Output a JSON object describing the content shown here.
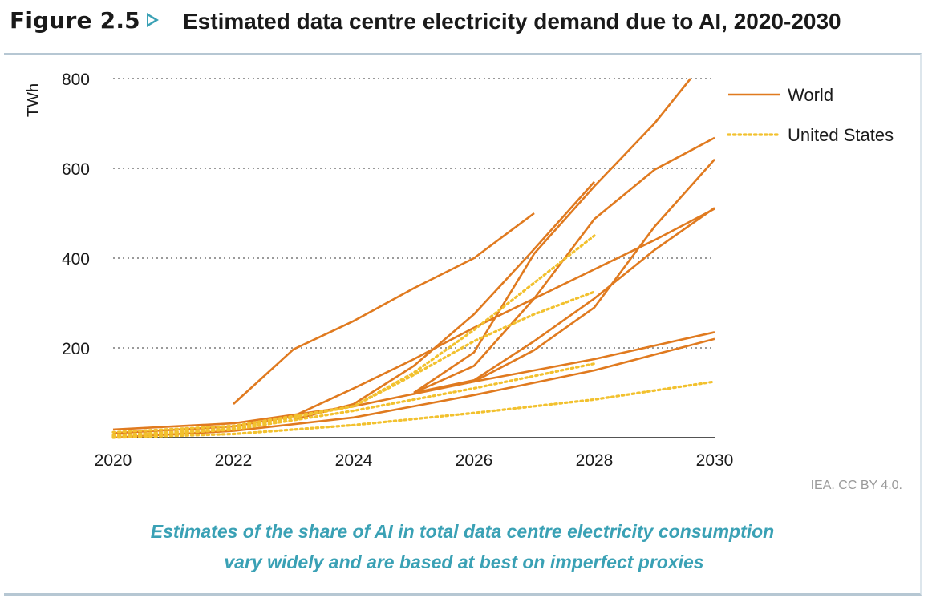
{
  "header": {
    "figure_label": "Figure 2.5",
    "title": "Estimated data centre electricity demand due to AI, 2020-2030"
  },
  "credit": "IEA. CC BY 4.0.",
  "caption": {
    "line1": "Estimates of the share of AI in total data centre electricity consumption",
    "line2": "vary widely and are based at best on imperfect proxies"
  },
  "colors": {
    "world": "#e07a1f",
    "us": "#f2c12e",
    "accent": "#3aa1b5",
    "grid": "#9a9a9a"
  },
  "chart_data": {
    "type": "line",
    "title": "Estimated data centre electricity demand due to AI, 2020-2030",
    "xlabel": "",
    "ylabel": "TWh",
    "xlim": [
      2020,
      2030
    ],
    "ylim": [
      0,
      800
    ],
    "x_ticks": [
      "2020",
      "2022",
      "2024",
      "2026",
      "2028",
      "2030"
    ],
    "y_ticks": [
      "200",
      "400",
      "600",
      "800"
    ],
    "y_tick_values": [
      200,
      400,
      600,
      800
    ],
    "grid": "horizontal dotted",
    "legend": {
      "placement": "top-right",
      "entries": [
        {
          "label": "World",
          "style": "solid",
          "series_type": "world"
        },
        {
          "label": "United States",
          "style": "dotted",
          "series_type": "us"
        }
      ]
    },
    "series": [
      {
        "type": "world",
        "points": [
          [
            2022,
            75
          ],
          [
            2023,
            197
          ],
          [
            2024,
            260
          ],
          [
            2025,
            333
          ],
          [
            2026,
            400
          ],
          [
            2027,
            500
          ]
        ]
      },
      {
        "type": "world",
        "points": [
          [
            2020,
            10
          ],
          [
            2022,
            25
          ],
          [
            2023,
            48
          ],
          [
            2024,
            110
          ],
          [
            2025,
            175
          ],
          [
            2026,
            245
          ],
          [
            2027,
            310
          ],
          [
            2028,
            375
          ],
          [
            2029,
            440
          ],
          [
            2030,
            510
          ]
        ]
      },
      {
        "type": "world",
        "points": [
          [
            2023,
            40
          ],
          [
            2024,
            75
          ],
          [
            2025,
            160
          ],
          [
            2026,
            275
          ],
          [
            2027,
            420
          ],
          [
            2028,
            570
          ]
        ]
      },
      {
        "type": "world",
        "points": [
          [
            2025,
            100
          ],
          [
            2026,
            190
          ],
          [
            2027,
            410
          ],
          [
            2028,
            560
          ],
          [
            2029,
            700
          ],
          [
            2029.6,
            800
          ]
        ]
      },
      {
        "type": "world",
        "points": [
          [
            2025,
            100
          ],
          [
            2026,
            160
          ],
          [
            2027,
            310
          ],
          [
            2028,
            487
          ],
          [
            2029,
            597
          ],
          [
            2030,
            668
          ]
        ]
      },
      {
        "type": "world",
        "points": [
          [
            2025,
            100
          ],
          [
            2026,
            125
          ],
          [
            2027,
            195
          ],
          [
            2028,
            290
          ],
          [
            2029,
            470
          ],
          [
            2030,
            620
          ]
        ]
      },
      {
        "type": "world",
        "points": [
          [
            2025,
            100
          ],
          [
            2026,
            128
          ],
          [
            2027,
            215
          ],
          [
            2028,
            310
          ],
          [
            2029,
            418
          ],
          [
            2030,
            512
          ]
        ]
      },
      {
        "type": "world",
        "points": [
          [
            2020,
            18
          ],
          [
            2022,
            32
          ],
          [
            2024,
            70
          ],
          [
            2026,
            125
          ],
          [
            2028,
            175
          ],
          [
            2030,
            235
          ]
        ]
      },
      {
        "type": "world",
        "points": [
          [
            2020,
            0
          ],
          [
            2022,
            15
          ],
          [
            2024,
            45
          ],
          [
            2026,
            95
          ],
          [
            2028,
            150
          ],
          [
            2030,
            220
          ]
        ]
      },
      {
        "type": "us",
        "points": [
          [
            2020,
            5
          ],
          [
            2022,
            20
          ],
          [
            2024,
            70
          ],
          [
            2025,
            145
          ],
          [
            2026,
            240
          ],
          [
            2027,
            345
          ],
          [
            2028,
            450
          ]
        ]
      },
      {
        "type": "us",
        "points": [
          [
            2020,
            12
          ],
          [
            2022,
            26
          ],
          [
            2024,
            70
          ],
          [
            2025,
            140
          ],
          [
            2026,
            215
          ],
          [
            2027,
            275
          ],
          [
            2028,
            325
          ]
        ]
      },
      {
        "type": "us",
        "points": [
          [
            2020,
            2
          ],
          [
            2022,
            18
          ],
          [
            2024,
            60
          ],
          [
            2026,
            110
          ],
          [
            2028,
            165
          ]
        ]
      },
      {
        "type": "us",
        "points": [
          [
            2020,
            0
          ],
          [
            2022,
            8
          ],
          [
            2024,
            28
          ],
          [
            2026,
            55
          ],
          [
            2028,
            85
          ],
          [
            2030,
            125
          ]
        ]
      }
    ]
  }
}
